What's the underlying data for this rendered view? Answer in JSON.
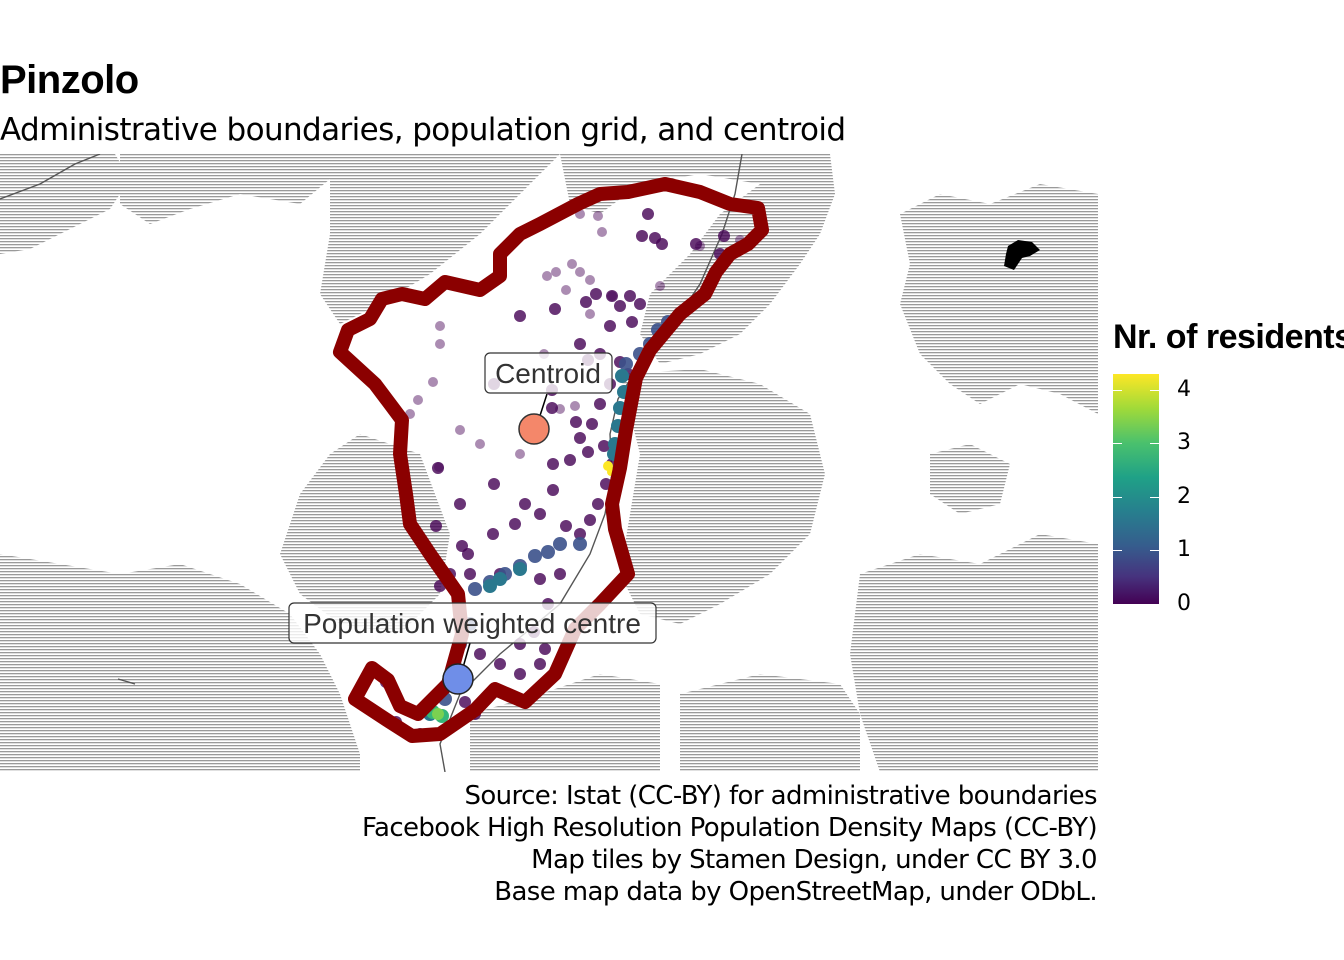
{
  "title": "Pinzolo",
  "subtitle": "Administrative boundaries, population grid, and centroid",
  "map": {
    "labels": {
      "centroid": "Centroid",
      "population_centre": "Population weighted centre"
    },
    "colors": {
      "boundary": "#8b0000",
      "centroid_point": "#f4876a",
      "population_centre_point": "#6f8ee8",
      "terrain": "#b5b5b5"
    }
  },
  "legend": {
    "title": "Nr. of residents",
    "ticks": [
      "4",
      "3",
      "2",
      "1",
      "0"
    ],
    "palette": "viridis"
  },
  "caption": {
    "line1": "Source: Istat (CC-BY) for administrative boundaries",
    "line2": "Facebook High Resolution Population Density Maps (CC-BY)",
    "line3": "Map tiles by Stamen Design, under CC BY 3.0",
    "line4": "Base map data by OpenStreetMap, under ODbL."
  }
}
